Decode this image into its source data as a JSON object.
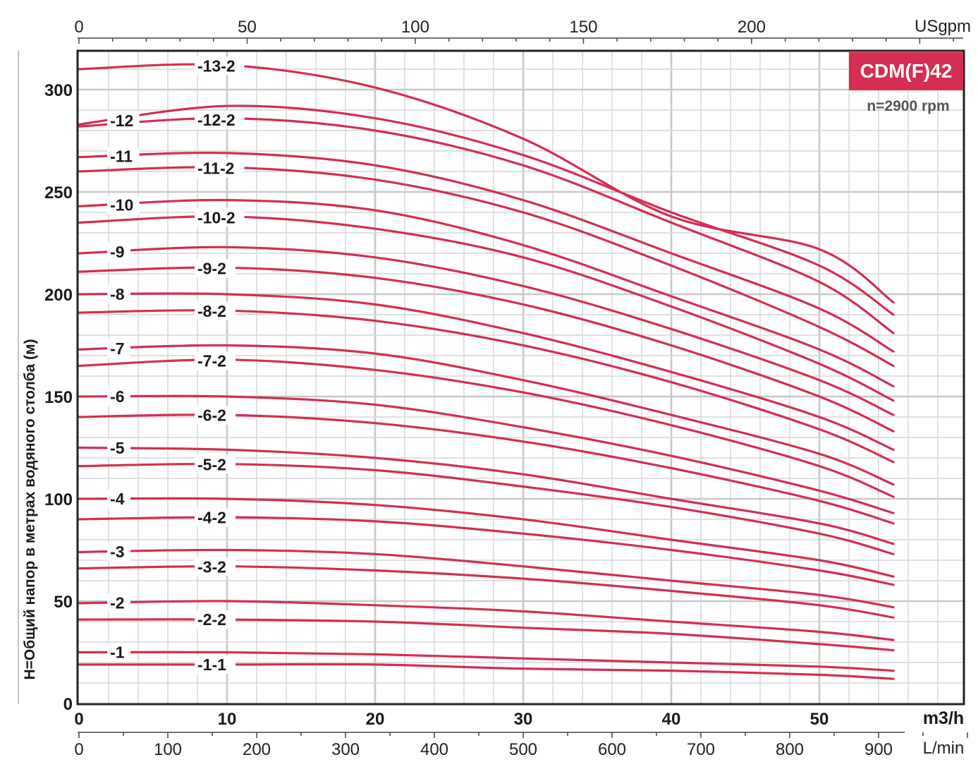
{
  "colors": {
    "curve": "#d42e52",
    "badge_bg": "#d42e52",
    "grid_minor": "#d6d6d6",
    "grid_major": "#c8c8c8",
    "frame": "#222222"
  },
  "badge": {
    "model": "CDM(F)42",
    "speed": "n=2900 rpm"
  },
  "chart_data": {
    "type": "line",
    "title": "",
    "ylabel": "H=Общий напор в метрах водяного столба (м)",
    "xlabel_m3h": "m3/h",
    "xlabel_lmin": "L/min",
    "xlabel_usgpm": "USgpm",
    "x_unit": "m3/h",
    "xlim": [
      0,
      60
    ],
    "ylim": [
      0,
      320
    ],
    "grid": true,
    "y_ticks": [
      "0",
      "50",
      "100",
      "150",
      "200",
      "250",
      "300"
    ],
    "x_ticks_m3h": [
      "0",
      "10",
      "20",
      "30",
      "40",
      "50"
    ],
    "x_ticks_lmin": [
      "0",
      "100",
      "200",
      "300",
      "400",
      "500",
      "600",
      "700",
      "800",
      "900"
    ],
    "x_ticks_usgpm": [
      "0",
      "50",
      "100",
      "150",
      "200"
    ],
    "series": [
      {
        "name": "-13-2",
        "label_x": 8,
        "x": [
          0,
          10,
          20,
          30,
          40,
          50,
          55
        ],
        "y": [
          310,
          312,
          301,
          276,
          238,
          222,
          196
        ]
      },
      {
        "name": "-12",
        "label_x": 2.1,
        "x": [
          0,
          10,
          20,
          30,
          40,
          50,
          55
        ],
        "y": [
          283,
          292,
          286,
          268,
          240,
          214,
          190
        ]
      },
      {
        "name": "-12-2",
        "label_x": 8,
        "x": [
          0,
          10,
          20,
          30,
          40,
          50,
          55
        ],
        "y": [
          282,
          286,
          280,
          263,
          235,
          206,
          181
        ]
      },
      {
        "name": "-11",
        "label_x": 2.1,
        "x": [
          0,
          10,
          20,
          30,
          40,
          50,
          55
        ],
        "y": [
          267,
          269,
          263,
          246,
          220,
          193,
          172
        ]
      },
      {
        "name": "-11-2",
        "label_x": 8,
        "x": [
          0,
          10,
          20,
          30,
          40,
          50,
          55
        ],
        "y": [
          260,
          262,
          256,
          240,
          214,
          184,
          165
        ]
      },
      {
        "name": "-10",
        "label_x": 2.1,
        "x": [
          0,
          10,
          20,
          30,
          40,
          50,
          55
        ],
        "y": [
          243,
          246,
          241,
          224,
          199,
          173,
          155
        ]
      },
      {
        "name": "-10-2",
        "label_x": 8,
        "x": [
          0,
          10,
          20,
          30,
          40,
          50,
          55
        ],
        "y": [
          235,
          238,
          232,
          218,
          194,
          166,
          148
        ]
      },
      {
        "name": "-9",
        "label_x": 2.1,
        "x": [
          0,
          10,
          20,
          30,
          40,
          50,
          55
        ],
        "y": [
          220,
          223,
          218,
          204,
          183,
          158,
          141
        ]
      },
      {
        "name": "-9-2",
        "label_x": 8,
        "x": [
          0,
          10,
          20,
          30,
          40,
          50,
          55
        ],
        "y": [
          211,
          213,
          208,
          195,
          175,
          150,
          133
        ]
      },
      {
        "name": "-8",
        "label_x": 2.1,
        "x": [
          0,
          10,
          20,
          30,
          40,
          50,
          55
        ],
        "y": [
          200,
          200,
          195,
          181,
          162,
          140,
          124
        ]
      },
      {
        "name": "-8-2",
        "label_x": 8,
        "x": [
          0,
          10,
          20,
          30,
          40,
          50,
          55
        ],
        "y": [
          191,
          192,
          187,
          175,
          157,
          134,
          118
        ]
      },
      {
        "name": "-7",
        "label_x": 2.1,
        "x": [
          0,
          10,
          20,
          30,
          40,
          50,
          55
        ],
        "y": [
          173,
          175,
          171,
          158,
          141,
          122,
          107
        ]
      },
      {
        "name": "-7-2",
        "label_x": 8,
        "x": [
          0,
          10,
          20,
          30,
          40,
          50,
          55
        ],
        "y": [
          165,
          168,
          163,
          152,
          136,
          116,
          101
        ]
      },
      {
        "name": "-6",
        "label_x": 2.1,
        "x": [
          0,
          10,
          20,
          30,
          40,
          50,
          55
        ],
        "y": [
          150,
          150,
          146,
          135,
          121,
          104,
          93
        ]
      },
      {
        "name": "-6-2",
        "label_x": 8,
        "x": [
          0,
          10,
          20,
          30,
          40,
          50,
          55
        ],
        "y": [
          140,
          141,
          137,
          128,
          115,
          99,
          88
        ]
      },
      {
        "name": "-5",
        "label_x": 2.1,
        "x": [
          0,
          10,
          20,
          30,
          40,
          50,
          55
        ],
        "y": [
          125,
          124,
          120,
          112,
          100,
          88,
          78
        ]
      },
      {
        "name": "-5-2",
        "label_x": 8,
        "x": [
          0,
          10,
          20,
          30,
          40,
          50,
          55
        ],
        "y": [
          116,
          117,
          114,
          106,
          96,
          83,
          73
        ]
      },
      {
        "name": "-4",
        "label_x": 2.1,
        "x": [
          0,
          10,
          20,
          30,
          40,
          50,
          55
        ],
        "y": [
          100,
          100,
          97,
          90,
          80,
          70,
          62
        ]
      },
      {
        "name": "-4-2",
        "label_x": 8,
        "x": [
          0,
          10,
          20,
          30,
          40,
          50,
          55
        ],
        "y": [
          90,
          91,
          89,
          83,
          75,
          65,
          58
        ]
      },
      {
        "name": "-3",
        "label_x": 2.1,
        "x": [
          0,
          10,
          20,
          30,
          40,
          50,
          55
        ],
        "y": [
          74,
          75,
          73,
          67,
          60,
          53,
          47
        ]
      },
      {
        "name": "-3-2",
        "label_x": 8,
        "x": [
          0,
          10,
          20,
          30,
          40,
          50,
          55
        ],
        "y": [
          66,
          67,
          65,
          61,
          55,
          48,
          42
        ]
      },
      {
        "name": "-2",
        "label_x": 2.1,
        "x": [
          0,
          10,
          20,
          30,
          40,
          50,
          55
        ],
        "y": [
          49,
          50,
          48,
          45,
          40,
          35,
          31
        ]
      },
      {
        "name": "-2-2",
        "label_x": 8,
        "x": [
          0,
          10,
          20,
          30,
          40,
          50,
          55
        ],
        "y": [
          41,
          41,
          40,
          37,
          34,
          29,
          26
        ]
      },
      {
        "name": "-1",
        "label_x": 2.1,
        "x": [
          0,
          10,
          20,
          30,
          40,
          50,
          55
        ],
        "y": [
          25,
          25,
          24,
          22,
          20,
          18,
          16
        ]
      },
      {
        "name": "-1-1",
        "label_x": 8,
        "x": [
          0,
          10,
          20,
          30,
          40,
          50,
          55
        ],
        "y": [
          19,
          19,
          19,
          17,
          16,
          14,
          12
        ]
      }
    ]
  }
}
